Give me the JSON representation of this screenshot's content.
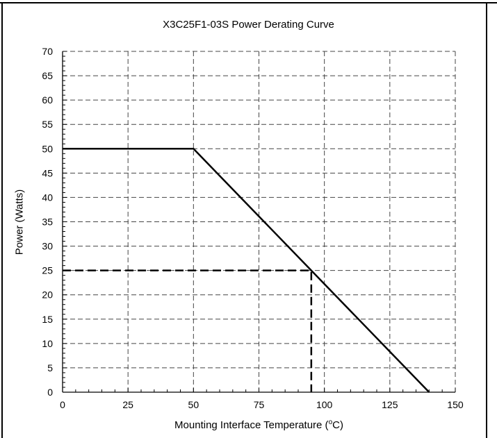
{
  "chart_data": {
    "type": "line",
    "title": "X3C25F1-03S Power Derating Curve",
    "xlabel_prefix": "Mounting  Interface Temperature (",
    "xlabel_degree": "o",
    "xlabel_suffix": "C)",
    "ylabel": "Power (Watts)",
    "xlim": [
      0,
      150
    ],
    "ylim": [
      0,
      70
    ],
    "x_ticks": [
      0,
      25,
      50,
      75,
      100,
      125,
      150
    ],
    "y_ticks": [
      0,
      5,
      10,
      15,
      20,
      25,
      30,
      35,
      40,
      45,
      50,
      55,
      60,
      65,
      70
    ],
    "grid": true,
    "grid_style": "dashed",
    "series": [
      {
        "style": "solid",
        "x": [
          0,
          50,
          140
        ],
        "y": [
          50,
          50,
          0
        ]
      },
      {
        "style": "dashed",
        "x": [
          0,
          95,
          95
        ],
        "y": [
          25,
          25,
          0
        ]
      }
    ]
  }
}
